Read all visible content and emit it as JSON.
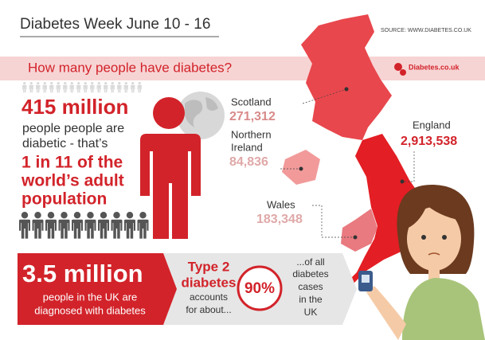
{
  "header": {
    "title": "Diabetes Week June 10 - 16",
    "source": "SOURCE: WWW.DIABETES.CO.UK"
  },
  "banner": {
    "question": "How many people have diabetes?",
    "logo": "Diabetes.co.uk"
  },
  "world": {
    "figure": "415 million",
    "lines": [
      "people people are",
      "diabetic - that’s"
    ],
    "highlight": [
      "1 in 11 of the",
      "world’s adult",
      "population"
    ]
  },
  "regions": [
    {
      "name": [
        "Scotland"
      ],
      "value": "271,312"
    },
    {
      "name": [
        "Northern",
        "Ireland"
      ],
      "value": "84,836"
    },
    {
      "name": [
        "Wales"
      ],
      "value": "183,348"
    },
    {
      "name": [
        "England"
      ],
      "value": "2,913,538"
    }
  ],
  "uk": {
    "figure": "3.5 million",
    "lines": [
      "people in the UK are",
      "diagnosed with diabetes"
    ]
  },
  "type2": {
    "heading": [
      "Type 2",
      "diabetes"
    ],
    "lines": [
      "accounts",
      "for about..."
    ],
    "percent": "90%",
    "tail": [
      "...of all",
      "diabetes",
      "cases",
      "in the",
      "UK"
    ]
  }
}
